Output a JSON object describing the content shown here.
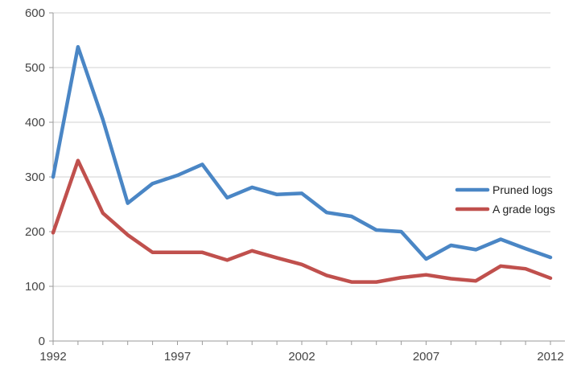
{
  "chart_data": {
    "type": "line",
    "title": "",
    "xlabel": "",
    "ylabel": "",
    "x": [
      1992,
      1993,
      1994,
      1995,
      1996,
      1997,
      1998,
      1999,
      2000,
      2001,
      2002,
      2003,
      2004,
      2005,
      2006,
      2007,
      2008,
      2009,
      2010,
      2011,
      2012
    ],
    "xlim": [
      1992,
      2012
    ],
    "ylim": [
      0,
      600
    ],
    "x_ticks": [
      1992,
      1997,
      2002,
      2007,
      2012
    ],
    "y_ticks": [
      0,
      100,
      200,
      300,
      400,
      500,
      600
    ],
    "grid": "horizontal",
    "legend_position": "right",
    "series": [
      {
        "name": "Pruned logs",
        "color": "#4a86c5",
        "values": [
          300,
          538,
          405,
          252,
          288,
          303,
          323,
          262,
          281,
          268,
          270,
          235,
          228,
          203,
          200,
          150,
          175,
          167,
          186,
          169,
          153
        ]
      },
      {
        "name": "A grade logs",
        "color": "#c0504d",
        "values": [
          198,
          330,
          234,
          194,
          162,
          162,
          162,
          148,
          165,
          152,
          140,
          120,
          108,
          108,
          116,
          121,
          114,
          110,
          137,
          132,
          115
        ]
      }
    ]
  }
}
